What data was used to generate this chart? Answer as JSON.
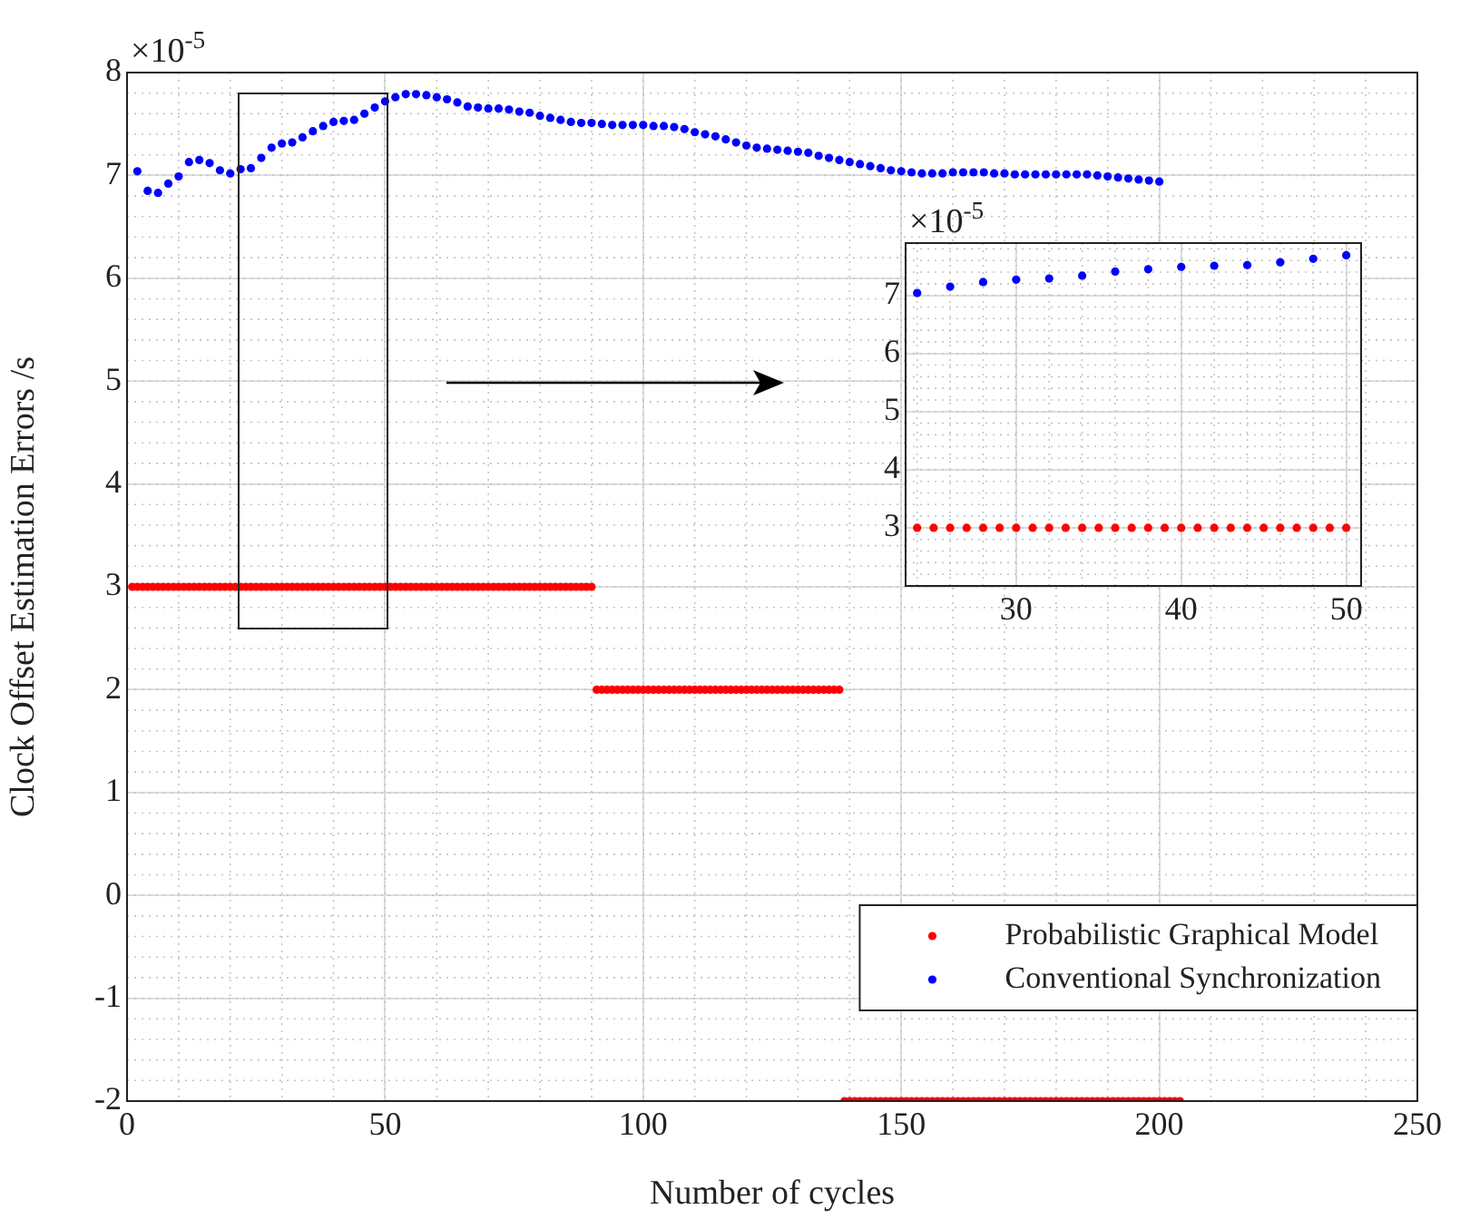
{
  "chart_data": [
    {
      "type": "scatter",
      "xlabel": "Number of cycles",
      "ylabel": "Clock Offset Estimation Errors /s",
      "annotations": [
        "×10$^{-5}$"
      ],
      "xlim": [
        0,
        250
      ],
      "xticks": [
        0,
        50,
        100,
        150,
        200,
        250
      ],
      "ylim": [
        -2,
        8
      ],
      "yticks": [
        -2,
        -1,
        0,
        1,
        2,
        3,
        4,
        5,
        6,
        7,
        8
      ],
      "grid": true,
      "legend": "bottom right",
      "marker": "circle",
      "series": [
        {
          "name": "Probabilistic Graphical Model",
          "color": "#ff0000",
          "x": [
            1,
            2,
            3,
            4,
            5,
            6,
            7,
            8,
            9,
            10,
            11,
            12,
            13,
            14,
            15,
            16,
            17,
            18,
            19,
            20,
            21,
            22,
            23,
            24,
            25,
            26,
            27,
            28,
            29,
            30,
            31,
            32,
            33,
            34,
            35,
            36,
            37,
            38,
            39,
            40,
            41,
            42,
            43,
            44,
            45,
            46,
            47,
            48,
            49,
            50,
            51,
            52,
            53,
            54,
            55,
            56,
            57,
            58,
            59,
            60,
            61,
            62,
            63,
            64,
            65,
            66,
            67,
            68,
            69,
            70,
            71,
            72,
            73,
            74,
            75,
            76,
            77,
            78,
            79,
            80,
            81,
            82,
            83,
            84,
            85,
            86,
            87,
            88,
            89,
            90,
            91,
            92,
            93,
            94,
            95,
            96,
            97,
            98,
            99,
            100,
            101,
            102,
            103,
            104,
            105,
            106,
            107,
            108,
            109,
            110,
            111,
            112,
            113,
            114,
            115,
            116,
            117,
            118,
            119,
            120,
            121,
            122,
            123,
            124,
            125,
            126,
            127,
            128,
            129,
            130,
            131,
            132,
            133,
            134,
            135,
            136,
            137,
            138,
            139,
            140,
            141,
            142,
            143,
            144,
            145,
            146,
            147,
            148,
            149,
            150,
            151,
            152,
            153,
            154,
            155,
            156,
            157,
            158,
            159,
            160,
            161,
            162,
            163,
            164,
            165,
            166,
            167,
            168,
            169,
            170,
            171,
            172,
            173,
            174,
            175,
            176,
            177,
            178,
            179,
            180,
            181,
            182,
            183,
            184,
            185,
            186,
            187,
            188,
            189,
            190,
            191,
            192,
            193,
            194,
            195,
            196,
            197,
            198,
            199,
            200,
            201,
            202,
            203,
            204
          ],
          "values": [
            3,
            3,
            3,
            3,
            3,
            3,
            3,
            3,
            3,
            3,
            3,
            3,
            3,
            3,
            3,
            3,
            3,
            3,
            3,
            3,
            3,
            3,
            3,
            3,
            3,
            3,
            3,
            3,
            3,
            3,
            3,
            3,
            3,
            3,
            3,
            3,
            3,
            3,
            3,
            3,
            3,
            3,
            3,
            3,
            3,
            3,
            3,
            3,
            3,
            3,
            3,
            3,
            3,
            3,
            3,
            3,
            3,
            3,
            3,
            3,
            3,
            3,
            3,
            3,
            3,
            3,
            3,
            3,
            3,
            3,
            3,
            3,
            3,
            3,
            3,
            3,
            3,
            3,
            3,
            3,
            3,
            3,
            3,
            3,
            3,
            3,
            3,
            3,
            3,
            3,
            2,
            2,
            2,
            2,
            2,
            2,
            2,
            2,
            2,
            2,
            2,
            2,
            2,
            2,
            2,
            2,
            2,
            2,
            2,
            2,
            2,
            2,
            2,
            2,
            2,
            2,
            2,
            2,
            2,
            2,
            2,
            2,
            2,
            2,
            2,
            2,
            2,
            2,
            2,
            2,
            2,
            2,
            2,
            2,
            2,
            2,
            2,
            2,
            -2,
            -2,
            -2,
            -2,
            -2,
            -2,
            -2,
            -2,
            -2,
            -2,
            -2,
            -2,
            -2,
            -2,
            -2,
            -2,
            -2,
            -2,
            -2,
            -2,
            -2,
            -2,
            -2,
            -2,
            -2,
            -2,
            -2,
            -2,
            -2,
            -2,
            -2,
            -2,
            -2,
            -2,
            -2,
            -2,
            -2,
            -2,
            -2,
            -2,
            -2,
            -2,
            -2,
            -2,
            -2,
            -2,
            -2,
            -2,
            -2,
            -2,
            -2,
            -2,
            -2,
            -2,
            -2,
            -2,
            -2,
            -2,
            -2,
            -2,
            -2,
            -2,
            -2,
            -2,
            -2,
            -2
          ]
        },
        {
          "name": "Conventional Synchronization",
          "color": "#0000ff",
          "x": [
            2,
            4,
            6,
            8,
            10,
            12,
            14,
            16,
            18,
            20,
            22,
            24,
            26,
            28,
            30,
            32,
            34,
            36,
            38,
            40,
            42,
            44,
            46,
            48,
            50,
            52,
            54,
            56,
            58,
            60,
            62,
            64,
            66,
            68,
            70,
            72,
            74,
            76,
            78,
            80,
            82,
            84,
            86,
            88,
            90,
            92,
            94,
            96,
            98,
            100,
            102,
            104,
            106,
            108,
            110,
            112,
            114,
            116,
            118,
            120,
            122,
            124,
            126,
            128,
            130,
            132,
            134,
            136,
            138,
            140,
            142,
            144,
            146,
            148,
            150,
            152,
            154,
            156,
            158,
            160,
            162,
            164,
            166,
            168,
            170,
            172,
            174,
            176,
            178,
            180,
            182,
            184,
            186,
            188,
            190,
            192,
            194,
            196,
            198,
            200
          ],
          "values": [
            7.04,
            6.85,
            6.83,
            6.92,
            6.99,
            7.13,
            7.15,
            7.12,
            7.05,
            7.02,
            7.06,
            7.07,
            7.17,
            7.27,
            7.31,
            7.32,
            7.37,
            7.43,
            7.48,
            7.52,
            7.53,
            7.54,
            7.6,
            7.66,
            7.72,
            7.76,
            7.79,
            7.79,
            7.78,
            7.76,
            7.74,
            7.71,
            7.67,
            7.66,
            7.65,
            7.65,
            7.64,
            7.62,
            7.61,
            7.58,
            7.56,
            7.54,
            7.52,
            7.51,
            7.51,
            7.5,
            7.49,
            7.49,
            7.49,
            7.49,
            7.48,
            7.48,
            7.47,
            7.45,
            7.42,
            7.4,
            7.38,
            7.35,
            7.32,
            7.29,
            7.27,
            7.26,
            7.25,
            7.24,
            7.23,
            7.22,
            7.19,
            7.17,
            7.15,
            7.13,
            7.11,
            7.09,
            7.07,
            7.05,
            7.04,
            7.03,
            7.02,
            7.02,
            7.02,
            7.03,
            7.03,
            7.03,
            7.03,
            7.02,
            7.02,
            7.01,
            7.01,
            7.01,
            7.01,
            7.01,
            7.01,
            7.01,
            7.01,
            7,
            6.99,
            6.98,
            6.97,
            6.96,
            6.95,
            6.94
          ]
        }
      ]
    },
    {
      "type": "scatter",
      "annotations": [
        "×10$^{-5}$"
      ],
      "xlim": [
        23.3,
        50.9
      ],
      "xticks": [
        30,
        40,
        50
      ],
      "ylim": [
        2,
        7.9
      ],
      "yticks": [
        3,
        4,
        5,
        6,
        7
      ],
      "grid": true,
      "marker": "circle",
      "series": [
        {
          "color": "#ff0000",
          "x": [
            24,
            25,
            26,
            27,
            28,
            29,
            30,
            31,
            32,
            33,
            34,
            35,
            36,
            37,
            38,
            39,
            40,
            41,
            42,
            43,
            44,
            45,
            46,
            47,
            48,
            49,
            50
          ],
          "values": [
            3,
            3,
            3,
            3,
            3,
            3,
            3,
            3,
            3,
            3,
            3,
            3,
            3,
            3,
            3,
            3,
            3,
            3,
            3,
            3,
            3,
            3,
            3,
            3,
            3,
            3,
            3
          ]
        },
        {
          "color": "#0000ff",
          "x": [
            24,
            26,
            28,
            30,
            32,
            34,
            36,
            38,
            40,
            42,
            44,
            46,
            48,
            50
          ],
          "values": [
            7.04,
            7.15,
            7.23,
            7.27,
            7.29,
            7.34,
            7.41,
            7.45,
            7.49,
            7.51,
            7.52,
            7.57,
            7.63,
            7.69
          ]
        }
      ]
    }
  ]
}
